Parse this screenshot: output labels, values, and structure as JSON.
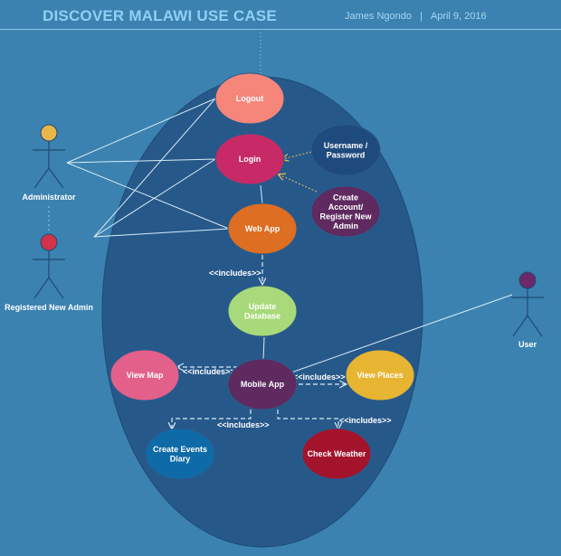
{
  "header": {
    "title": "DISCOVER MALAWI USE CASE",
    "author": "James Ngondo",
    "separator": "|",
    "date": "April 9, 2016"
  },
  "colors": {
    "background": "#3b82b0",
    "system_boundary": "#27588a",
    "line": "#d6ecf7"
  },
  "actors": {
    "administrator": {
      "label": "Administrator",
      "head_color": "#e8b64a"
    },
    "registered_new_admin": {
      "label": "Registered New Admin",
      "head_color": "#d2324a"
    },
    "user": {
      "label": "User",
      "head_color": "#6a2a6a"
    }
  },
  "use_cases": {
    "logout": {
      "lines": [
        "Logout"
      ],
      "color": "#f6857a"
    },
    "login": {
      "lines": [
        "Login"
      ],
      "color": "#c72a66"
    },
    "username_password": {
      "lines": [
        "Username /",
        "Password"
      ],
      "color": "#1f4a7d"
    },
    "create_account": {
      "lines": [
        "Create",
        "Account/",
        "Register New",
        "Admin"
      ],
      "color": "#5e2a5f"
    },
    "web_app": {
      "lines": [
        "Web App"
      ],
      "color": "#dd6e22"
    },
    "update_database": {
      "lines": [
        "Update",
        "Database"
      ],
      "color": "#a8d97a"
    },
    "mobile_app": {
      "lines": [
        "Mobile App"
      ],
      "color": "#5e2a5f"
    },
    "view_map": {
      "lines": [
        "View Map"
      ],
      "color": "#e3608a"
    },
    "view_places": {
      "lines": [
        "View Places"
      ],
      "color": "#e7b532"
    },
    "create_events_diary": {
      "lines": [
        "Create Events",
        "Diary"
      ],
      "color": "#0f6aa8"
    },
    "check_weather": {
      "lines": [
        "Check Weather"
      ],
      "color": "#a3142c"
    }
  },
  "relations": {
    "includes_web_update": "<<includes>>",
    "includes_mobile_map": "<<includes>>",
    "includes_mobile_places": "<<includes>>",
    "includes_mobile_events": "<<includes>>",
    "includes_mobile_weather": "<<includes>>"
  }
}
